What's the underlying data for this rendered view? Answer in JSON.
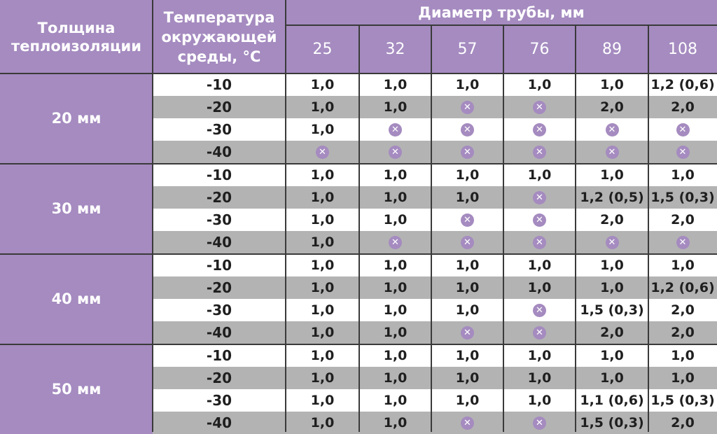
{
  "header": {
    "thickness_label": "Толщина теплоизоляции",
    "temp_label": "Температура окружающей среды, °С",
    "diameter_label": "Диаметр трубы, мм",
    "diameters": [
      "25",
      "32",
      "57",
      "76",
      "89",
      "108"
    ]
  },
  "colors": {
    "header_bg": "#a58bc0",
    "grey_row": "#b3b3b3",
    "white_row": "#ffffff",
    "x_icon": "#a58bc0"
  },
  "x_icon_name": "x-circle-icon",
  "groups": [
    {
      "thickness": "20 мм",
      "rows": [
        {
          "temp": "-10",
          "cells": [
            "1,0",
            "1,0",
            "1,0",
            "1,0",
            "1,0",
            "1,2 (0,6)"
          ]
        },
        {
          "temp": "-20",
          "cells": [
            "1,0",
            "1,0",
            "x",
            "x",
            "2,0",
            "2,0"
          ]
        },
        {
          "temp": "-30",
          "cells": [
            "1,0",
            "x",
            "x",
            "x",
            "x",
            "x"
          ]
        },
        {
          "temp": "-40",
          "cells": [
            "x",
            "x",
            "x",
            "x",
            "x",
            "x"
          ]
        }
      ]
    },
    {
      "thickness": "30 мм",
      "rows": [
        {
          "temp": "-10",
          "cells": [
            "1,0",
            "1,0",
            "1,0",
            "1,0",
            "1,0",
            "1,0"
          ]
        },
        {
          "temp": "-20",
          "cells": [
            "1,0",
            "1,0",
            "1,0",
            "x",
            "1,2 (0,5)",
            "1,5 (0,3)"
          ]
        },
        {
          "temp": "-30",
          "cells": [
            "1,0",
            "1,0",
            "x",
            "x",
            "2,0",
            "2,0"
          ]
        },
        {
          "temp": "-40",
          "cells": [
            "1,0",
            "x",
            "x",
            "x",
            "x",
            "x"
          ]
        }
      ]
    },
    {
      "thickness": "40 мм",
      "rows": [
        {
          "temp": "-10",
          "cells": [
            "1,0",
            "1,0",
            "1,0",
            "1,0",
            "1,0",
            "1,0"
          ]
        },
        {
          "temp": "-20",
          "cells": [
            "1,0",
            "1,0",
            "1,0",
            "1,0",
            "1,0",
            "1,2 (0,6)"
          ]
        },
        {
          "temp": "-30",
          "cells": [
            "1,0",
            "1,0",
            "1,0",
            "x",
            "1,5 (0,3)",
            "2,0"
          ]
        },
        {
          "temp": "-40",
          "cells": [
            "1,0",
            "1,0",
            "x",
            "x",
            "2,0",
            "2,0"
          ]
        }
      ]
    },
    {
      "thickness": "50 мм",
      "rows": [
        {
          "temp": "-10",
          "cells": [
            "1,0",
            "1,0",
            "1,0",
            "1,0",
            "1,0",
            "1,0"
          ]
        },
        {
          "temp": "-20",
          "cells": [
            "1,0",
            "1,0",
            "1,0",
            "1,0",
            "1,0",
            "1,0"
          ]
        },
        {
          "temp": "-30",
          "cells": [
            "1,0",
            "1,0",
            "1,0",
            "1,0",
            "1,1 (0,6)",
            "1,5 (0,3)"
          ]
        },
        {
          "temp": "-40",
          "cells": [
            "1,0",
            "1,0",
            "x",
            "x",
            "1,5 (0,3)",
            "2,0"
          ]
        }
      ]
    }
  ]
}
